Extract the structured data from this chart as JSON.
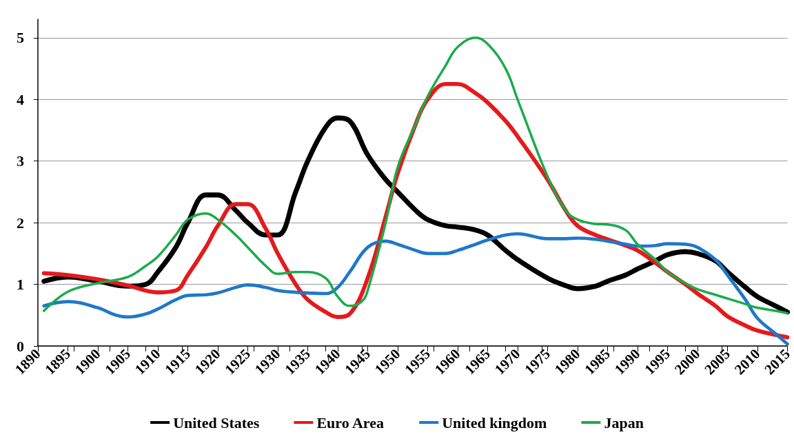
{
  "chart_data": {
    "type": "line",
    "xlim": [
      1890,
      2015
    ],
    "xticks": [
      1890,
      1895,
      1900,
      1905,
      1910,
      1915,
      1920,
      1925,
      1930,
      1935,
      1940,
      1945,
      1950,
      1955,
      1960,
      1965,
      1970,
      1975,
      1980,
      1985,
      1990,
      1995,
      2000,
      2005,
      2010,
      2015
    ],
    "ylim": [
      0,
      5.3
    ],
    "yticks": [
      0,
      1,
      2,
      3,
      4,
      5
    ],
    "grid": "y",
    "legend": "bottom",
    "marker": "none",
    "line_style": "solid",
    "series": [
      {
        "name": "United States",
        "color": "#000000",
        "x": [
          1891,
          1895,
          1900,
          1905,
          1908,
          1910,
          1913,
          1915,
          1918,
          1920,
          1923,
          1925,
          1928,
          1930,
          1933,
          1935,
          1938,
          1940,
          1942,
          1945,
          1948,
          1950,
          1953,
          1955,
          1958,
          1960,
          1963,
          1965,
          1968,
          1970,
          1975,
          1978,
          1980,
          1983,
          1985,
          1988,
          1990,
          1993,
          1995,
          1998,
          2000,
          2003,
          2005,
          2008,
          2010,
          2013,
          2015
        ],
        "values": [
          1.05,
          1.12,
          1.05,
          0.97,
          1.0,
          1.2,
          1.6,
          2.0,
          2.45,
          2.45,
          2.2,
          2.0,
          1.8,
          1.8,
          2.5,
          3.0,
          3.55,
          3.7,
          3.65,
          3.1,
          2.7,
          2.5,
          2.2,
          2.05,
          1.95,
          1.93,
          1.88,
          1.8,
          1.55,
          1.4,
          1.1,
          0.98,
          0.93,
          0.97,
          1.05,
          1.15,
          1.25,
          1.38,
          1.48,
          1.53,
          1.5,
          1.38,
          1.2,
          0.95,
          0.8,
          0.65,
          0.55
        ]
      },
      {
        "name": "Euro Area",
        "color": "#e41a1c",
        "x": [
          1891,
          1895,
          1900,
          1905,
          1910,
          1913,
          1915,
          1918,
          1920,
          1923,
          1925,
          1928,
          1930,
          1933,
          1935,
          1938,
          1940,
          1942,
          1945,
          1948,
          1950,
          1953,
          1955,
          1958,
          1960,
          1963,
          1965,
          1968,
          1970,
          1975,
          1978,
          1980,
          1983,
          1985,
          1988,
          1990,
          1993,
          1995,
          1998,
          2000,
          2003,
          2005,
          2008,
          2010,
          2013,
          2015
        ],
        "values": [
          1.18,
          1.15,
          1.08,
          0.98,
          0.87,
          0.9,
          1.15,
          1.6,
          1.95,
          2.3,
          2.3,
          1.9,
          1.5,
          1.0,
          0.75,
          0.55,
          0.47,
          0.52,
          1.1,
          2.1,
          2.8,
          3.6,
          4.0,
          4.25,
          4.25,
          4.1,
          3.95,
          3.65,
          3.4,
          2.7,
          2.2,
          1.95,
          1.8,
          1.73,
          1.63,
          1.55,
          1.35,
          1.2,
          1.0,
          0.85,
          0.65,
          0.48,
          0.33,
          0.25,
          0.18,
          0.14
        ]
      },
      {
        "name": "United kingdom",
        "color": "#1f78c8",
        "x": [
          1891,
          1895,
          1900,
          1903,
          1905,
          1908,
          1910,
          1913,
          1915,
          1918,
          1920,
          1923,
          1925,
          1928,
          1930,
          1933,
          1935,
          1938,
          1940,
          1942,
          1945,
          1948,
          1950,
          1953,
          1955,
          1958,
          1960,
          1963,
          1965,
          1968,
          1970,
          1975,
          1978,
          1980,
          1983,
          1985,
          1988,
          1990,
          1993,
          1995,
          1998,
          2000,
          2003,
          2005,
          2008,
          2010,
          2013,
          2015
        ],
        "values": [
          0.65,
          0.72,
          0.62,
          0.5,
          0.47,
          0.52,
          0.6,
          0.75,
          0.82,
          0.83,
          0.86,
          0.95,
          0.99,
          0.95,
          0.9,
          0.87,
          0.86,
          0.85,
          0.95,
          1.2,
          1.6,
          1.7,
          1.65,
          1.55,
          1.5,
          1.5,
          1.55,
          1.65,
          1.72,
          1.8,
          1.82,
          1.74,
          1.74,
          1.75,
          1.73,
          1.7,
          1.65,
          1.62,
          1.63,
          1.66,
          1.65,
          1.6,
          1.4,
          1.15,
          0.75,
          0.45,
          0.2,
          0.03
        ]
      },
      {
        "name": "Japan",
        "color": "#1aab4b",
        "x": [
          1891,
          1895,
          1900,
          1905,
          1908,
          1910,
          1913,
          1915,
          1918,
          1920,
          1923,
          1925,
          1928,
          1930,
          1933,
          1935,
          1938,
          1940,
          1942,
          1944,
          1945,
          1948,
          1950,
          1953,
          1955,
          1958,
          1960,
          1963,
          1965,
          1968,
          1970,
          1975,
          1978,
          1980,
          1983,
          1985,
          1988,
          1990,
          1993,
          1995,
          1998,
          2000,
          2003,
          2005,
          2008,
          2010,
          2013,
          2015
        ],
        "values": [
          0.57,
          0.88,
          1.02,
          1.12,
          1.3,
          1.45,
          1.8,
          2.05,
          2.15,
          2.05,
          1.8,
          1.6,
          1.3,
          1.17,
          1.2,
          1.2,
          1.1,
          0.8,
          0.65,
          0.72,
          0.9,
          2.0,
          2.9,
          3.6,
          4.05,
          4.55,
          4.85,
          5.0,
          4.9,
          4.5,
          4.0,
          2.75,
          2.2,
          2.05,
          1.98,
          1.97,
          1.88,
          1.65,
          1.4,
          1.2,
          1.02,
          0.92,
          0.83,
          0.77,
          0.68,
          0.62,
          0.57,
          0.53
        ]
      }
    ]
  }
}
